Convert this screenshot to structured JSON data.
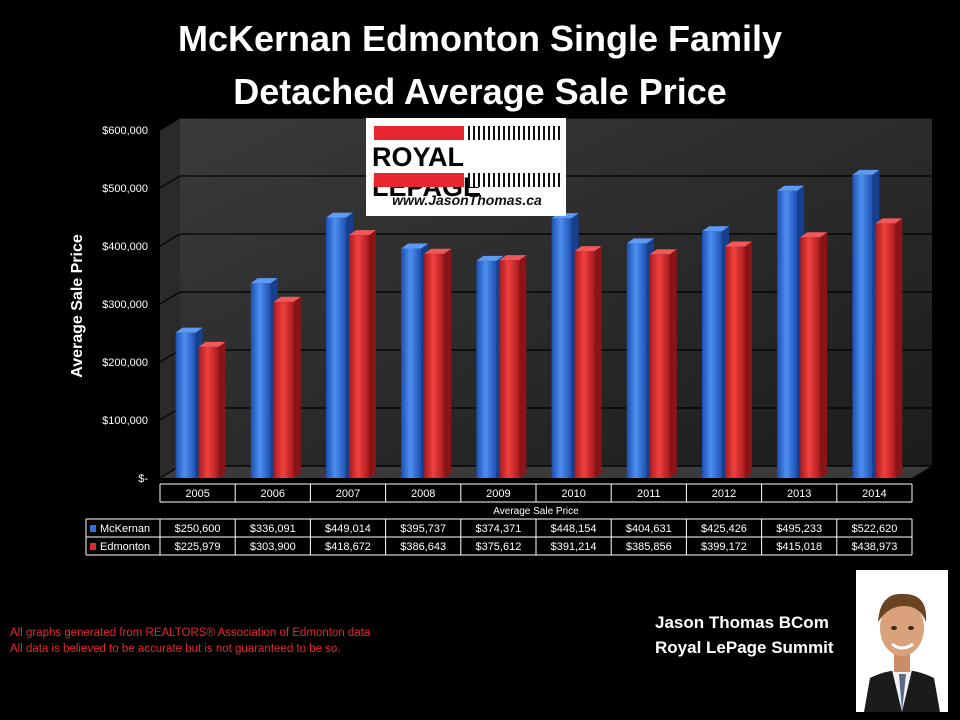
{
  "title_line1": "McKernan Edmonton Single Family",
  "title_line2": "Detached Average Sale Price",
  "logo": {
    "brand": "ROYAL LEPAGE",
    "website": "www.JasonThomas.ca"
  },
  "footnotes": [
    "All graphs generated from REALTORS® Association of Edmonton data",
    "All data is believed to be accurate but is not guaranteed to be so."
  ],
  "signature": {
    "name": "Jason Thomas BCom",
    "company": "Royal LePage Summit"
  },
  "chart_data": {
    "type": "bar",
    "title": "McKernan Edmonton Single Family Detached Average Sale Price",
    "ylabel": "Average Sale Price",
    "xlabel": "Average Sale Price",
    "ylim": [
      0,
      600000
    ],
    "yticks": [
      0,
      100000,
      200000,
      300000,
      400000,
      500000,
      600000
    ],
    "ytick_labels": [
      "$-",
      "$100,000",
      "$200,000",
      "$300,000",
      "$400,000",
      "$500,000",
      "$600,000"
    ],
    "categories": [
      "2005",
      "2006",
      "2007",
      "2008",
      "2009",
      "2010",
      "2011",
      "2012",
      "2013",
      "2014"
    ],
    "series": [
      {
        "name": "McKernan",
        "color": "#2e6fd9",
        "values": [
          250600,
          336091,
          449014,
          395737,
          374371,
          448154,
          404631,
          425426,
          495233,
          522620
        ],
        "labels": [
          "$250,600",
          "$336,091",
          "$449,014",
          "$395,737",
          "$374,371",
          "$448,154",
          "$404,631",
          "$425,426",
          "$495,233",
          "$522,620"
        ]
      },
      {
        "name": "Edmonton",
        "color": "#d9292b",
        "values": [
          225979,
          303900,
          418672,
          386643,
          375612,
          391214,
          385856,
          399172,
          415018,
          438973
        ],
        "labels": [
          "$225,979",
          "$303,900",
          "$418,672",
          "$386,643",
          "$375,612",
          "$391,214",
          "$385,856",
          "$399,172",
          "$415,018",
          "$438,973"
        ]
      }
    ],
    "grid": true,
    "legend": "data-table"
  }
}
